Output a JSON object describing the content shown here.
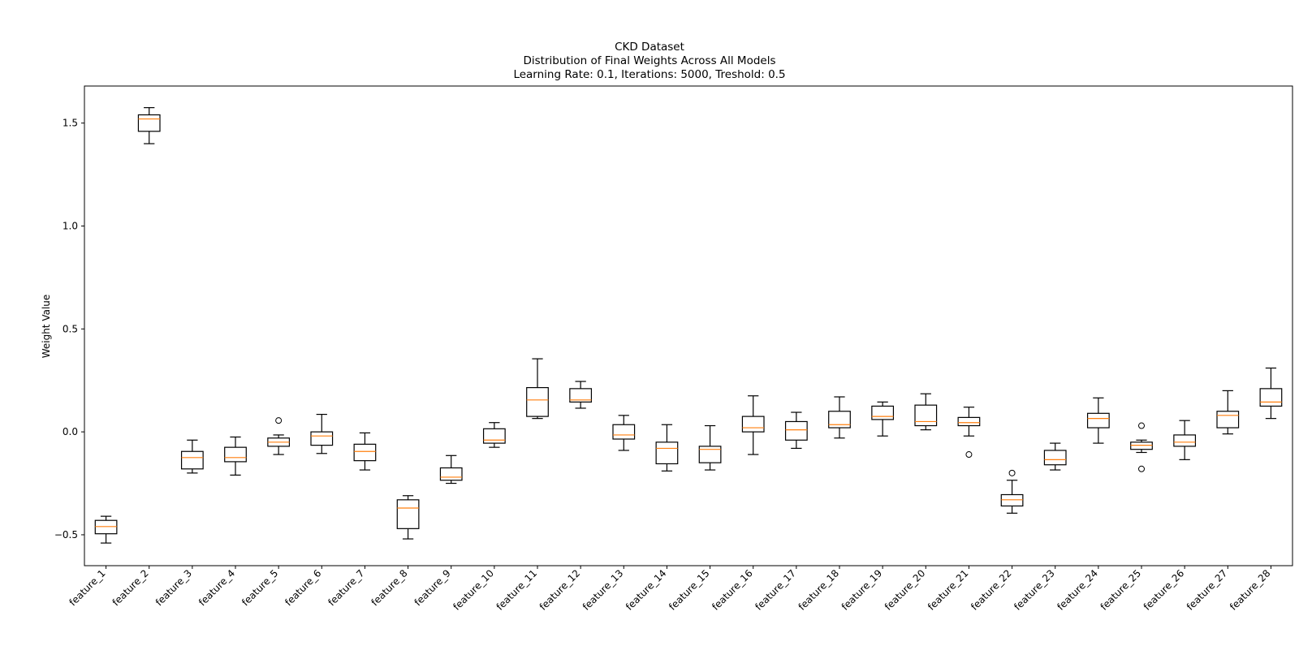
{
  "chart_data": {
    "type": "box",
    "title_lines": [
      "CKD Dataset",
      "Distribution of Final Weights Across All Models",
      "Learning Rate: 0.1, Iterations: 5000, Treshold: 0.5"
    ],
    "xlabel": "",
    "ylabel": "Weight Value",
    "ylim": [
      -0.65,
      1.68
    ],
    "yticks": [
      -0.5,
      0.0,
      0.5,
      1.0,
      1.5
    ],
    "ytick_labels": [
      "−0.5",
      "0.0",
      "0.5",
      "1.0",
      "1.5"
    ],
    "grid": false,
    "colors": {
      "box": "#000000",
      "median": "#ff7f0e",
      "axes": "#000000"
    },
    "boxes": [
      {
        "label": "feature_1",
        "whislo": -0.54,
        "q1": -0.495,
        "med": -0.46,
        "q3": -0.43,
        "whishi": -0.41,
        "fliers": []
      },
      {
        "label": "feature_2",
        "whislo": 1.4,
        "q1": 1.46,
        "med": 1.52,
        "q3": 1.54,
        "whishi": 1.575,
        "fliers": []
      },
      {
        "label": "feature_3",
        "whislo": -0.2,
        "q1": -0.18,
        "med": -0.125,
        "q3": -0.095,
        "whishi": -0.04,
        "fliers": []
      },
      {
        "label": "feature_4",
        "whislo": -0.21,
        "q1": -0.145,
        "med": -0.125,
        "q3": -0.075,
        "whishi": -0.025,
        "fliers": []
      },
      {
        "label": "feature_5",
        "whislo": -0.11,
        "q1": -0.07,
        "med": -0.05,
        "q3": -0.03,
        "whishi": -0.015,
        "fliers": [
          0.055
        ]
      },
      {
        "label": "feature_6",
        "whislo": -0.105,
        "q1": -0.065,
        "med": -0.02,
        "q3": 0.0,
        "whishi": 0.085,
        "fliers": []
      },
      {
        "label": "feature_7",
        "whislo": -0.185,
        "q1": -0.14,
        "med": -0.095,
        "q3": -0.06,
        "whishi": -0.005,
        "fliers": []
      },
      {
        "label": "feature_8",
        "whislo": -0.52,
        "q1": -0.47,
        "med": -0.37,
        "q3": -0.33,
        "whishi": -0.31,
        "fliers": []
      },
      {
        "label": "feature_9",
        "whislo": -0.25,
        "q1": -0.235,
        "med": -0.22,
        "q3": -0.175,
        "whishi": -0.115,
        "fliers": []
      },
      {
        "label": "feature_10",
        "whislo": -0.075,
        "q1": -0.055,
        "med": -0.04,
        "q3": 0.015,
        "whishi": 0.045,
        "fliers": []
      },
      {
        "label": "feature_11",
        "whislo": 0.065,
        "q1": 0.075,
        "med": 0.155,
        "q3": 0.215,
        "whishi": 0.355,
        "fliers": []
      },
      {
        "label": "feature_12",
        "whislo": 0.115,
        "q1": 0.145,
        "med": 0.155,
        "q3": 0.21,
        "whishi": 0.245,
        "fliers": []
      },
      {
        "label": "feature_13",
        "whislo": -0.09,
        "q1": -0.035,
        "med": -0.015,
        "q3": 0.035,
        "whishi": 0.08,
        "fliers": []
      },
      {
        "label": "feature_14",
        "whislo": -0.19,
        "q1": -0.155,
        "med": -0.08,
        "q3": -0.05,
        "whishi": 0.035,
        "fliers": []
      },
      {
        "label": "feature_15",
        "whislo": -0.185,
        "q1": -0.15,
        "med": -0.085,
        "q3": -0.07,
        "whishi": 0.03,
        "fliers": []
      },
      {
        "label": "feature_16",
        "whislo": -0.11,
        "q1": 0.0,
        "med": 0.02,
        "q3": 0.075,
        "whishi": 0.175,
        "fliers": []
      },
      {
        "label": "feature_17",
        "whislo": -0.08,
        "q1": -0.04,
        "med": 0.01,
        "q3": 0.05,
        "whishi": 0.095,
        "fliers": []
      },
      {
        "label": "feature_18",
        "whislo": -0.03,
        "q1": 0.02,
        "med": 0.035,
        "q3": 0.1,
        "whishi": 0.17,
        "fliers": []
      },
      {
        "label": "feature_19",
        "whislo": -0.02,
        "q1": 0.06,
        "med": 0.075,
        "q3": 0.125,
        "whishi": 0.145,
        "fliers": []
      },
      {
        "label": "feature_20",
        "whislo": 0.01,
        "q1": 0.03,
        "med": 0.05,
        "q3": 0.13,
        "whishi": 0.185,
        "fliers": []
      },
      {
        "label": "feature_21",
        "whislo": -0.02,
        "q1": 0.03,
        "med": 0.045,
        "q3": 0.07,
        "whishi": 0.12,
        "fliers": [
          -0.11
        ]
      },
      {
        "label": "feature_22",
        "whislo": -0.395,
        "q1": -0.36,
        "med": -0.33,
        "q3": -0.305,
        "whishi": -0.235,
        "fliers": [
          -0.2
        ]
      },
      {
        "label": "feature_23",
        "whislo": -0.185,
        "q1": -0.16,
        "med": -0.135,
        "q3": -0.09,
        "whishi": -0.055,
        "fliers": []
      },
      {
        "label": "feature_24",
        "whislo": -0.055,
        "q1": 0.02,
        "med": 0.065,
        "q3": 0.09,
        "whishi": 0.165,
        "fliers": []
      },
      {
        "label": "feature_25",
        "whislo": -0.1,
        "q1": -0.085,
        "med": -0.065,
        "q3": -0.05,
        "whishi": -0.04,
        "fliers": [
          0.03,
          -0.18
        ]
      },
      {
        "label": "feature_26",
        "whislo": -0.135,
        "q1": -0.07,
        "med": -0.05,
        "q3": -0.015,
        "whishi": 0.055,
        "fliers": []
      },
      {
        "label": "feature_27",
        "whislo": -0.01,
        "q1": 0.02,
        "med": 0.08,
        "q3": 0.1,
        "whishi": 0.2,
        "fliers": []
      },
      {
        "label": "feature_28",
        "whislo": 0.065,
        "q1": 0.125,
        "med": 0.145,
        "q3": 0.21,
        "whishi": 0.31,
        "fliers": []
      }
    ]
  }
}
